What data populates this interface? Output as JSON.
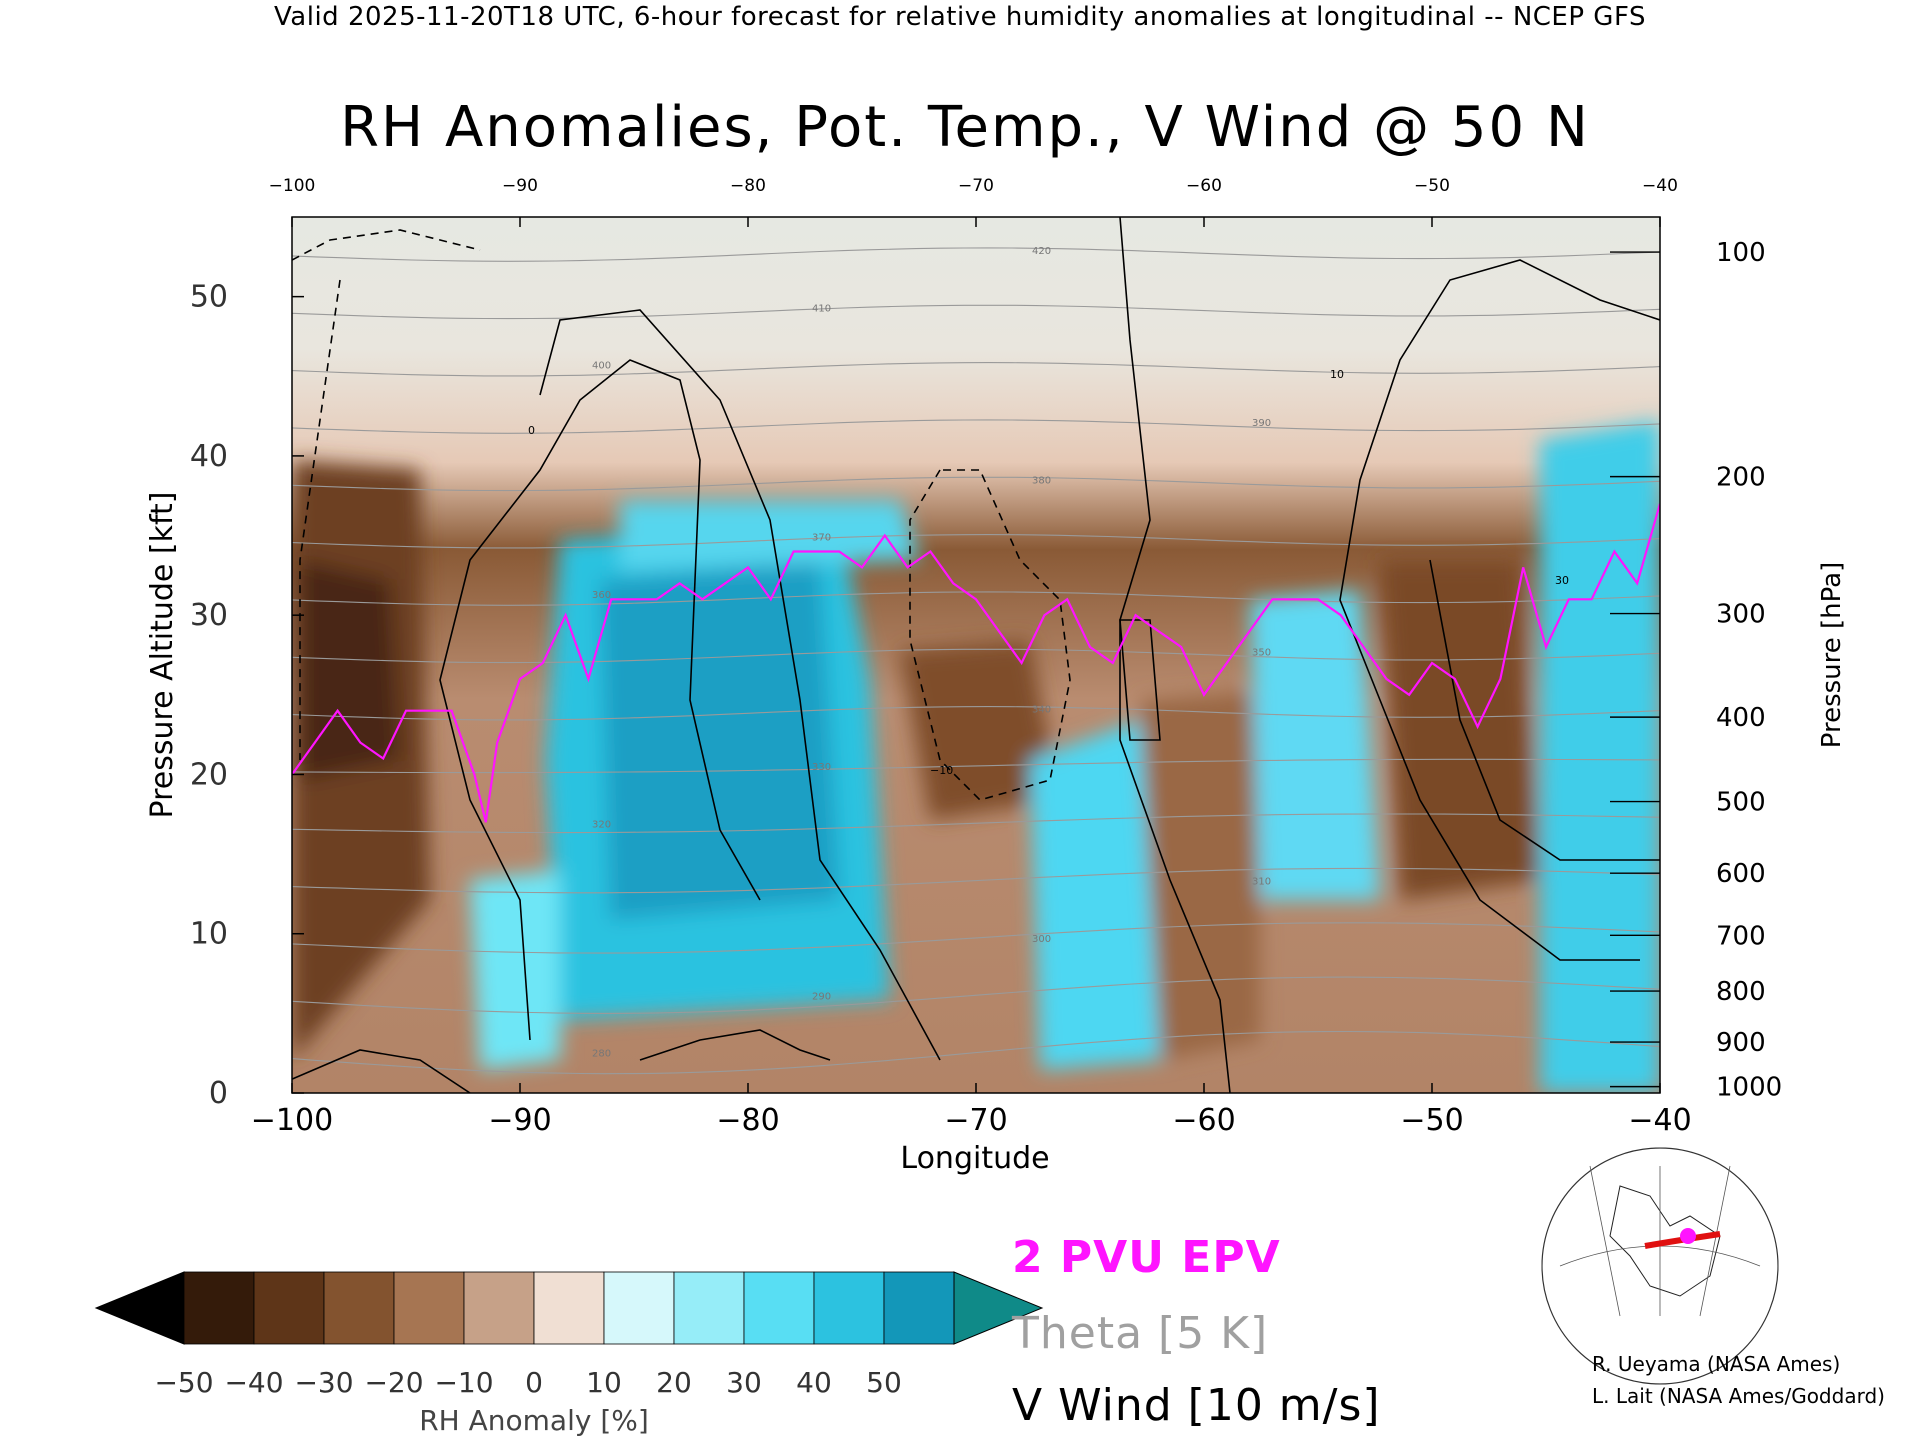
{
  "header": "Valid 2025-11-20T18 UTC, 6-hour forecast for relative humidity anomalies at longitudinal -- NCEP GFS",
  "chart_data": {
    "type": "heatmap",
    "title": "RH Anomalies, Pot. Temp., V Wind @ 50 N",
    "xlabel": "Longitude",
    "ylabel": "Pressure Altitude [kft]",
    "y2label": "Pressure [hPa]",
    "xlim": [
      -100,
      -40
    ],
    "ylim": [
      0,
      55
    ],
    "x_ticks": [
      "−100",
      "−90",
      "−80",
      "−70",
      "−60",
      "−50",
      "−40"
    ],
    "x_ticks_values": [
      -100,
      -90,
      -80,
      -70,
      -60,
      -50,
      -40
    ],
    "top_ticks": [
      "−100",
      "−90",
      "−80",
      "−70",
      "−60",
      "−50",
      "−40"
    ],
    "y_ticks": [
      "0",
      "10",
      "20",
      "30",
      "40",
      "50"
    ],
    "y_ticks_values": [
      0,
      10,
      20,
      30,
      40,
      50
    ],
    "pressure_ticks": [
      {
        "label": "100",
        "alt": 52.8
      },
      {
        "label": "200",
        "alt": 38.7
      },
      {
        "label": "300",
        "alt": 30.1
      },
      {
        "label": "400",
        "alt": 23.6
      },
      {
        "label": "500",
        "alt": 18.3
      },
      {
        "label": "600",
        "alt": 13.8
      },
      {
        "label": "700",
        "alt": 9.9
      },
      {
        "label": "800",
        "alt": 6.4
      },
      {
        "label": "900",
        "alt": 3.2
      },
      {
        "label": "1000",
        "alt": 0.4
      }
    ],
    "theta_levels": [
      280,
      290,
      300,
      310,
      320,
      330,
      340,
      350,
      360,
      370,
      380,
      390,
      400,
      410,
      420
    ],
    "epv_2pvu": {
      "x": [
        -100,
        -99,
        -98,
        -97,
        -96,
        -95,
        -94,
        -93,
        -92,
        -91.5,
        -91,
        -90,
        -89,
        -88,
        -87,
        -86,
        -85,
        -84,
        -83,
        -82,
        -81,
        -80,
        -79,
        -78,
        -77,
        -76,
        -75,
        -74,
        -73,
        -72,
        -71,
        -70,
        -69,
        -68,
        -67,
        -66,
        -65,
        -64,
        -63,
        -62,
        -61,
        -60,
        -59,
        -58,
        -57,
        -56,
        -55,
        -54,
        -53,
        -52,
        -51,
        -50,
        -49,
        -48,
        -47,
        -46,
        -45,
        -44,
        -43,
        -42,
        -41,
        -40
      ],
      "alt": [
        20,
        22,
        24,
        22,
        21,
        24,
        24,
        24,
        20,
        17,
        22,
        26,
        27,
        30,
        26,
        31,
        31,
        31,
        32,
        31,
        32,
        33,
        31,
        34,
        34,
        34,
        33,
        35,
        33,
        34,
        32,
        31,
        29,
        27,
        30,
        31,
        28,
        27,
        30,
        29,
        28,
        25,
        27,
        29,
        31,
        31,
        31,
        30,
        28,
        26,
        25,
        27,
        26,
        23,
        26,
        33,
        28,
        31,
        31,
        34,
        32,
        37
      ]
    },
    "v_wind_contour_labels": [
      "0",
      "10",
      "−10",
      "30"
    ],
    "colorbar": {
      "label": "RH Anomaly [%]",
      "ticks": [
        "−50",
        "−40",
        "−30",
        "−20",
        "−10",
        "0",
        "10",
        "20",
        "30",
        "40",
        "50"
      ],
      "colors": [
        "#341b0a",
        "#5e3518",
        "#83532f",
        "#a67552",
        "#c6a188",
        "#f0dfd3",
        "#d6f8fb",
        "#96edf8",
        "#58def3",
        "#2cc2e0",
        "#1397b9"
      ],
      "under_color": "#000000",
      "over_color": "#0f8a88"
    },
    "legend": [
      {
        "label": "2 PVU EPV",
        "color": "#ff14ff"
      },
      {
        "label": "Theta [5 K]",
        "color": "#a0a0a0"
      },
      {
        "label": "V Wind [10 m/s]",
        "color": "#000000"
      }
    ]
  },
  "credits": [
    "R. Ueyama (NASA Ames)",
    "L. Lait (NASA Ames/Goddard)"
  ]
}
